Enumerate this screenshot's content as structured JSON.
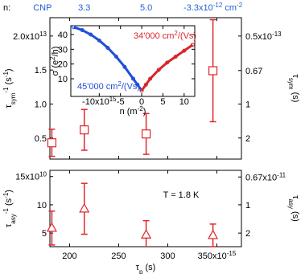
{
  "chart_data": [
    {
      "type": "scatter",
      "panel": "top",
      "x": [
        182,
        215,
        278,
        346
      ],
      "xlim": [
        180,
        375
      ],
      "xticks": [
        200,
        250,
        300,
        350
      ],
      "xtick_labels": false,
      "ylim": [
        0.19,
        2.27
      ],
      "yticks": [
        0.5,
        {
          "value": 1,
          "label": "1.0"
        },
        1.5,
        {
          "value": 2,
          "label": [
            {
              "text": "2.0x10"
            },
            {
              "sup": "13"
            }
          ]
        }
      ],
      "y2ticks": [
        {
          "value": 0.5,
          "label": [
            {
              "text": "0.5x10"
            },
            {
              "sup": "-13"
            }
          ]
        },
        0.67,
        1,
        2
      ],
      "ylabel": [
        {
          "text": "τ"
        },
        {
          "sub": "sym"
        },
        {
          "sup": "-1"
        },
        {
          "text": " (s"
        },
        {
          "sup": "-1"
        },
        {
          "text": ")"
        }
      ],
      "y2label": [
        {
          "text": "τ"
        },
        {
          "sub": "sym"
        },
        {
          "text": " (s)"
        }
      ],
      "x2_prefix": "n:",
      "x2ticks": [
        {
          "value": 182,
          "label": [
            {
              "text": "CNP"
            }
          ]
        },
        {
          "value": 215,
          "label": [
            {
              "text": "3.3"
            }
          ]
        },
        {
          "value": 278,
          "label": [
            {
              "text": "5.0"
            }
          ]
        },
        {
          "value": 346,
          "label": [
            {
              "text": "-3.3x10"
            },
            {
              "sup": "-12"
            },
            {
              "text": " cm"
            },
            {
              "sup": "-2"
            }
          ]
        }
      ],
      "x2_color": "#1f5fd1",
      "series": [
        {
          "color": "#e0262b",
          "marker": "square",
          "values": [
            0.43,
            0.62,
            0.56,
            1.49
          ],
          "errors": [
            0.2,
            0.3,
            0.3,
            0.75
          ]
        }
      ]
    },
    {
      "type": "scatter",
      "panel": "bottom",
      "x": [
        182,
        215,
        278,
        346
      ],
      "xlim": [
        180,
        375
      ],
      "xticks": [
        200,
        250,
        300,
        {
          "value": 350,
          "label": [
            {
              "text": "350x10"
            },
            {
              "sup": "-15"
            }
          ]
        }
      ],
      "xtick_labels": true,
      "xlabel": [
        {
          "text": "τ"
        },
        {
          "sub": "p"
        },
        {
          "text": " (s)"
        }
      ],
      "ylim": [
        2.6,
        16.1
      ],
      "yticks": [
        5,
        10,
        {
          "value": 15,
          "label": [
            {
              "text": "15x10"
            },
            {
              "sup": "10"
            }
          ]
        }
      ],
      "y2ticks": [
        {
          "value": 0.67,
          "label": [
            {
              "text": "0.67x10"
            },
            {
              "sup": "-11"
            }
          ]
        },
        1,
        2
      ],
      "ylabel": [
        {
          "text": "τ"
        },
        {
          "sub": "asy"
        },
        {
          "sup": "-1"
        },
        {
          "text": " (s"
        },
        {
          "sup": "-1"
        },
        {
          "text": ")"
        }
      ],
      "y2label": [
        {
          "text": "τ"
        },
        {
          "sub": "asy"
        },
        {
          "text": " (s)"
        }
      ],
      "annotation": "T = 1.8 K",
      "series": [
        {
          "color": "#e0262b",
          "marker": "triangle",
          "values": [
            5.9,
            9.3,
            4.7,
            4.6
          ],
          "errors": [
            3,
            4.5,
            2.5,
            2
          ]
        }
      ]
    },
    {
      "type": "line",
      "panel": "inset",
      "xlim": [
        -16.7,
        12.5
      ],
      "xticks": [
        {
          "value": -10,
          "label": [
            {
              "text": "-10x10"
            },
            {
              "sup": "15"
            }
          ]
        },
        -5,
        0,
        5,
        10
      ],
      "xtick_labels": true,
      "ylim": [
        -2,
        46
      ],
      "yticks": [
        10,
        20,
        30,
        40
      ],
      "xlabel": [
        {
          "text": "n (m"
        },
        {
          "sup": "-2"
        },
        {
          "text": ")"
        }
      ],
      "ylabel": [
        {
          "text": "σ (e"
        },
        {
          "sup": "2"
        },
        {
          "text": "/h)"
        }
      ],
      "series": [
        {
          "color": "#1f4fd8",
          "x": [
            -16,
            -14,
            -12,
            -10,
            -8,
            -6,
            -4,
            -2,
            -1,
            0
          ],
          "values": [
            45,
            43,
            40,
            36,
            31,
            25,
            18,
            10,
            6,
            2
          ]
        },
        {
          "color": "#d8262b",
          "x": [
            0,
            1,
            2,
            4,
            6,
            8,
            10,
            12
          ],
          "values": [
            2,
            6,
            10,
            16,
            21,
            25,
            29,
            33
          ]
        }
      ],
      "annotations": [
        {
          "text": [
            {
              "text": "34'000 cm"
            },
            {
              "sup": "2"
            },
            {
              "text": "/(Vs)"
            }
          ],
          "color": "#d8262b"
        },
        {
          "text": [
            {
              "text": "45'000 cm"
            },
            {
              "sup": "2"
            },
            {
              "text": "/(Vs)"
            }
          ],
          "color": "#1f4fd8"
        }
      ]
    }
  ]
}
